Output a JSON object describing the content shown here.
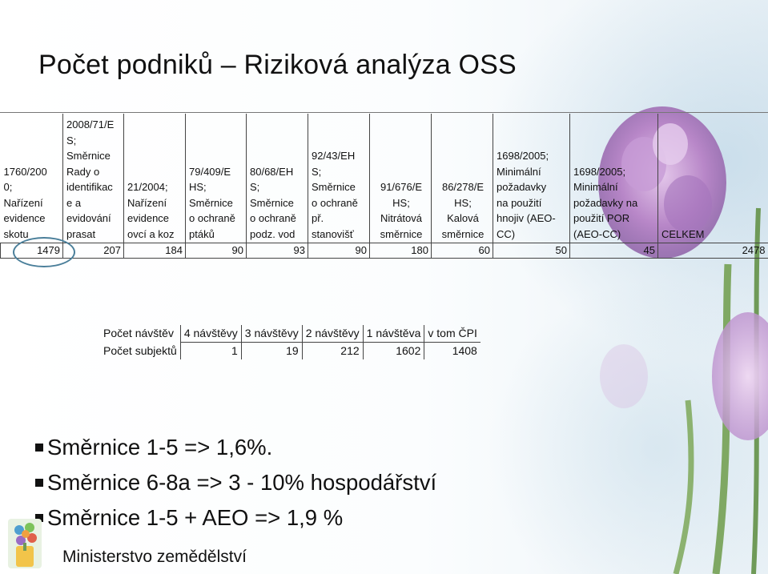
{
  "title": "Počet podniků – Riziková analýza OSS",
  "table1": {
    "headers": [
      [
        "1760/200",
        "0;",
        "Nařízení",
        "evidence",
        "skotu"
      ],
      [
        "2008/71/E",
        "S;",
        "Směrnice",
        "Rady o",
        "identifikac",
        "e a",
        "evidování",
        "prasat"
      ],
      [
        "21/2004;",
        "Nařízení",
        "evidence",
        "ovcí a koz"
      ],
      [
        "79/409/E",
        "HS;",
        "Směrnice",
        "o ochraně",
        "ptáků"
      ],
      [
        "80/68/EH",
        "S;",
        "Směrnice",
        "o ochraně",
        "podz. vod"
      ],
      [
        "92/43/EH",
        "S;",
        "Směrnice",
        "o ochraně",
        "př.",
        "stanovišť"
      ],
      [
        "91/676/E",
        "HS;",
        "Nitrátová",
        "směrnice"
      ],
      [
        "86/278/E",
        "HS;",
        "Kalová",
        "směrnice"
      ],
      [
        "1698/2005;",
        "Minimální",
        "požadavky",
        "na použití",
        "hnojiv (AEO-",
        "CC)"
      ],
      [
        "1698/2005;",
        "Minimální",
        "požadavky na",
        "použití POR",
        "(AEO-CC)"
      ],
      [
        "CELKEM"
      ]
    ],
    "values": [
      "1479",
      "207",
      "184",
      "90",
      "93",
      "90",
      "180",
      "60",
      "50",
      "45",
      "2478"
    ]
  },
  "table2": {
    "corner": "Počet návštěv",
    "columns": [
      "4 návštěvy",
      "3 návštěvy",
      "2 návštěvy",
      "1 návštěva",
      "v tom ČPI"
    ],
    "row_label": "Počet subjektů",
    "values": [
      "1",
      "19",
      "212",
      "1602",
      "1408"
    ]
  },
  "bullets": [
    "Směrnice 1-5 => 1,6%.",
    "Směrnice 6-8a => 3 - 10% hospodářství",
    "Směrnice 1-5 + AEO => 1,9 %"
  ],
  "footer": "Ministerstvo zemědělství",
  "icons": {
    "logo": "ministry-logo-icon",
    "bullet": "square-bullet-icon"
  },
  "colors": {
    "highlight_ring": "#4a7f9a",
    "flower": "#b887c8",
    "stem": "#6f9a58"
  }
}
